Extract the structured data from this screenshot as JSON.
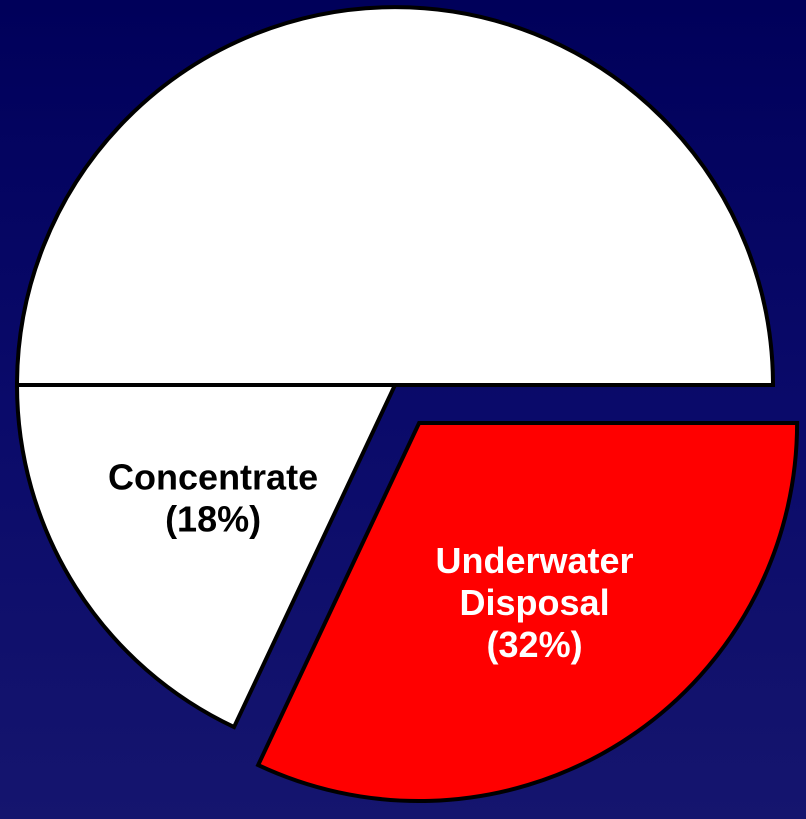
{
  "chart_data": {
    "type": "pie",
    "categories": [
      null,
      "Underwater Disposal",
      "Concentrate"
    ],
    "values": [
      50,
      32,
      18
    ],
    "value_labels": [
      null,
      "(32%)",
      "(18%)"
    ],
    "colors": [
      "#ffffff",
      "#ff0000",
      "#ffffff"
    ],
    "label_colors": [
      null,
      "#ffffff",
      "#000000"
    ],
    "exploded": [
      false,
      true,
      false
    ]
  }
}
